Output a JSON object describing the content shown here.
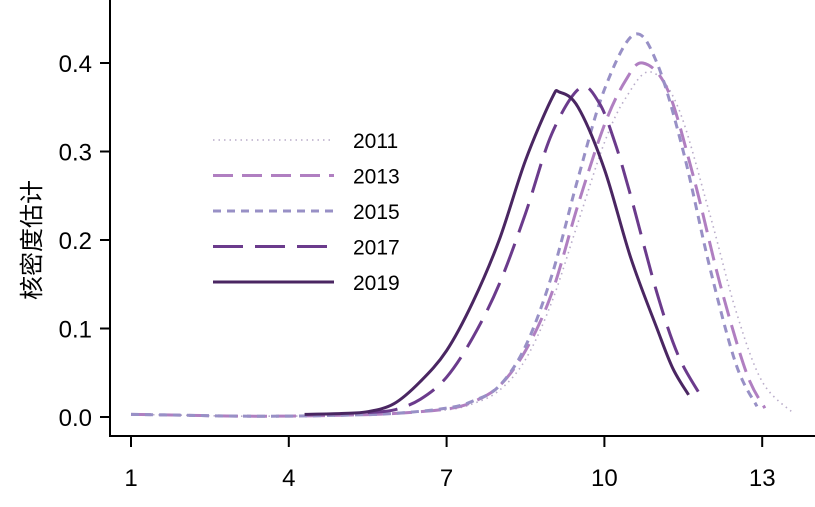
{
  "chart_data": {
    "type": "line",
    "title": "",
    "xlabel": "",
    "ylabel": "核密度估计",
    "xlim": [
      0.6,
      14.2
    ],
    "ylim": [
      0,
      0.47
    ],
    "xticks": [
      1,
      4,
      7,
      10,
      13
    ],
    "xtick_labels": [
      "1",
      "4",
      "7",
      "10",
      "13"
    ],
    "yticks": [
      0,
      0.1,
      0.2,
      0.3,
      0.4
    ],
    "ytick_labels": [
      "0.0",
      "0.1",
      "0.2",
      "0.3",
      "0.4"
    ],
    "grid": false,
    "legend_position": "upper-left-inside",
    "series": [
      {
        "name": "2011",
        "color": "#b9acc9",
        "dash": "dotted",
        "x": [
          1,
          2,
          3,
          4,
          5,
          6,
          7,
          7.5,
          8,
          8.5,
          9,
          9.5,
          10,
          10.4,
          10.87,
          11.4,
          12,
          12.5,
          13,
          13.6
        ],
        "y": [
          0.003,
          0.002,
          0.001,
          0.001,
          0.002,
          0.004,
          0.008,
          0.015,
          0.03,
          0.065,
          0.13,
          0.22,
          0.31,
          0.36,
          0.39,
          0.35,
          0.23,
          0.12,
          0.04,
          0.004
        ]
      },
      {
        "name": "2013",
        "color": "#b07fc1",
        "dash": "dashed",
        "x": [
          1,
          2,
          3,
          4,
          5,
          6,
          7,
          7.5,
          8,
          8.5,
          9,
          9.5,
          10,
          10.4,
          10.73,
          11.2,
          11.7,
          12.2,
          12.7,
          13.05
        ],
        "y": [
          0.003,
          0.002,
          0.001,
          0.001,
          0.002,
          0.004,
          0.009,
          0.017,
          0.035,
          0.075,
          0.14,
          0.24,
          0.33,
          0.38,
          0.4,
          0.37,
          0.27,
          0.15,
          0.05,
          0.01
        ]
      },
      {
        "name": "2015",
        "color": "#9890c6",
        "dash": "short-dashed",
        "x": [
          1,
          2,
          3,
          4,
          5,
          6,
          7,
          7.5,
          8,
          8.5,
          9,
          9.5,
          10,
          10.56,
          11,
          11.5,
          12,
          12.5,
          12.9
        ],
        "y": [
          0.003,
          0.002,
          0.001,
          0.001,
          0.002,
          0.004,
          0.01,
          0.018,
          0.035,
          0.08,
          0.16,
          0.27,
          0.37,
          0.432,
          0.4,
          0.3,
          0.17,
          0.06,
          0.012
        ]
      },
      {
        "name": "2017",
        "color": "#6b3b8c",
        "dash": "long-dashed",
        "x": [
          5.5,
          6,
          6.5,
          7,
          7.5,
          8,
          8.5,
          9,
          9.54,
          9.9,
          10.2,
          10.5,
          11,
          11.4,
          11.8
        ],
        "y": [
          0.005,
          0.008,
          0.02,
          0.045,
          0.09,
          0.15,
          0.23,
          0.32,
          0.372,
          0.355,
          0.31,
          0.25,
          0.14,
          0.07,
          0.027
        ]
      },
      {
        "name": "2019",
        "color": "#4a2662",
        "dash": "solid",
        "x": [
          4.3,
          5,
          5.5,
          6,
          6.5,
          7,
          7.5,
          8,
          8.5,
          9,
          9.15,
          9.5,
          10,
          10.5,
          11,
          11.3,
          11.6
        ],
        "y": [
          0.003,
          0.004,
          0.006,
          0.015,
          0.04,
          0.075,
          0.13,
          0.2,
          0.29,
          0.36,
          0.367,
          0.35,
          0.28,
          0.18,
          0.1,
          0.055,
          0.025
        ]
      }
    ]
  }
}
